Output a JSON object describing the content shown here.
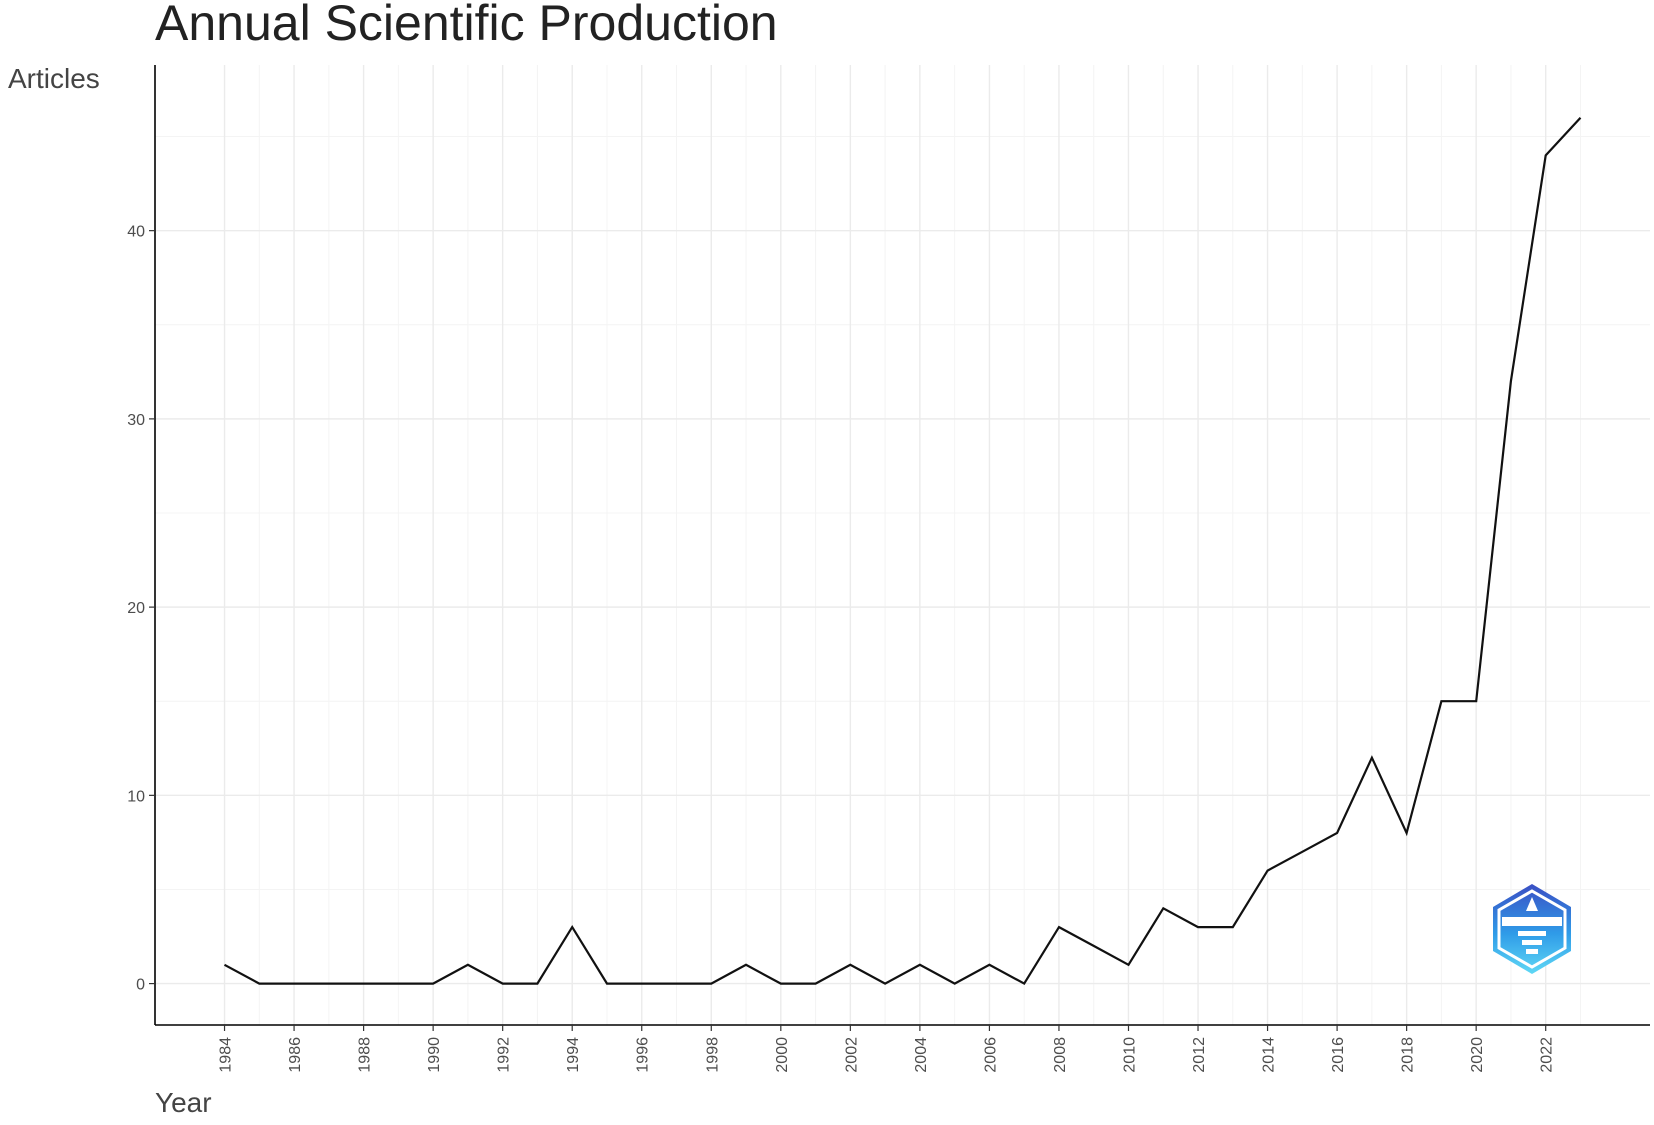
{
  "chart_data": {
    "type": "line",
    "title": "Annual Scientific Production",
    "xlabel": "Year",
    "ylabel": "Articles",
    "x": [
      1984,
      1985,
      1986,
      1987,
      1988,
      1989,
      1990,
      1991,
      1992,
      1993,
      1994,
      1995,
      1996,
      1997,
      1998,
      1999,
      2000,
      2001,
      2002,
      2003,
      2004,
      2005,
      2006,
      2007,
      2008,
      2009,
      2010,
      2011,
      2012,
      2013,
      2014,
      2015,
      2016,
      2017,
      2018,
      2019,
      2020,
      2021,
      2022,
      2023
    ],
    "series": [
      {
        "values": [
          1,
          0,
          0,
          0,
          0,
          0,
          0,
          1,
          0,
          0,
          3,
          0,
          0,
          0,
          0,
          1,
          0,
          0,
          1,
          0,
          1,
          0,
          1,
          0,
          3,
          2,
          1,
          4,
          3,
          3,
          6,
          7,
          8,
          12,
          8,
          15,
          15,
          32,
          44,
          46
        ],
        "color": "#111111"
      }
    ],
    "xlim": [
      1982,
      2025
    ],
    "ylim": [
      -2.2,
      48.8
    ],
    "x_ticks": [
      "1984",
      "1986",
      "1988",
      "1990",
      "1992",
      "1994",
      "1996",
      "1998",
      "2000",
      "2002",
      "2004",
      "2006",
      "2008",
      "2010",
      "2012",
      "2014",
      "2016",
      "2018",
      "2020",
      "2022"
    ],
    "y_ticks": [
      "0",
      "10",
      "20",
      "30",
      "40"
    ],
    "grid": true,
    "legend": "none"
  },
  "logo": {
    "name": "logo-icon",
    "colors": [
      "#3a4fc4",
      "#2f9be8",
      "#5fd8f5"
    ]
  }
}
